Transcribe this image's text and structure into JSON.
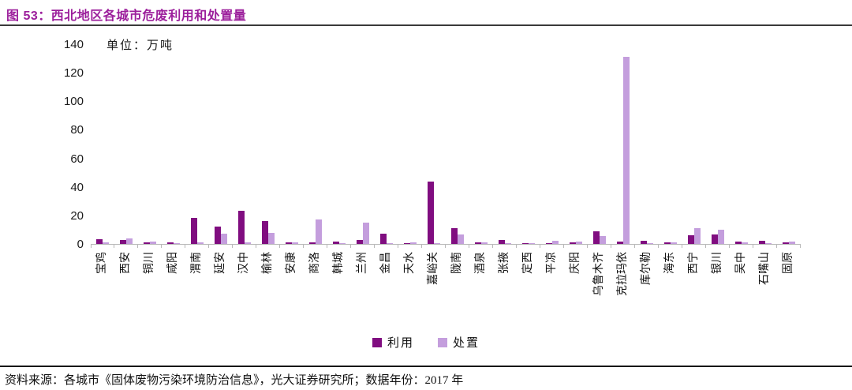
{
  "figure": {
    "title": "图 53：西北地区各城市危废利用和处置量",
    "source_line": "资料来源：各城市《固体废物污染环境防治信息》，光大证券研究所；数据年份：2017 年"
  },
  "chart_data": {
    "type": "bar",
    "title": "西北地区各城市危废利用和处置量",
    "unit_label": "单位：万吨",
    "categories": [
      "宝鸡",
      "西安",
      "铜川",
      "咸阳",
      "渭南",
      "延安",
      "汉中",
      "榆林",
      "安康",
      "商洛",
      "韩城",
      "兰州",
      "金昌",
      "天水",
      "嘉峪关",
      "陇南",
      "酒泉",
      "张掖",
      "定西",
      "平凉",
      "庆阳",
      "乌鲁木齐",
      "克拉玛依",
      "库尔勒",
      "海东",
      "西宁",
      "银川",
      "吴中",
      "石嘴山",
      "固原"
    ],
    "series": [
      {
        "name": "利用",
        "color": "#800D80",
        "values": [
          3.5,
          3,
          1,
          1,
          18,
          12,
          23,
          16,
          1,
          1,
          1.5,
          2.5,
          7,
          0.5,
          44,
          11,
          1,
          3,
          0.5,
          0.5,
          1,
          9,
          1.5,
          2,
          1,
          6,
          6.5,
          1.5,
          2,
          1
        ]
      },
      {
        "name": "处置",
        "color": "#C49EDD",
        "values": [
          1,
          4,
          1.5,
          0.5,
          1,
          7,
          1,
          7.5,
          1,
          17,
          0.5,
          15,
          0.5,
          1,
          0.5,
          6.5,
          1,
          0.5,
          0.5,
          2,
          1.5,
          5.5,
          131,
          0.5,
          1,
          11,
          10,
          1,
          0.5,
          1.5
        ]
      }
    ],
    "xlabel": "",
    "ylabel": "",
    "ylim": [
      0,
      140
    ],
    "yticks": [
      0,
      20,
      40,
      60,
      80,
      100,
      120,
      140
    ],
    "grid": false,
    "legend_position": "bottom"
  },
  "colors": {
    "title_text": "#9C1F9C",
    "series_use": "#800D80",
    "series_dispose": "#C49EDD",
    "axis_line": "#b9b9b9",
    "rule_line": "#141414"
  }
}
